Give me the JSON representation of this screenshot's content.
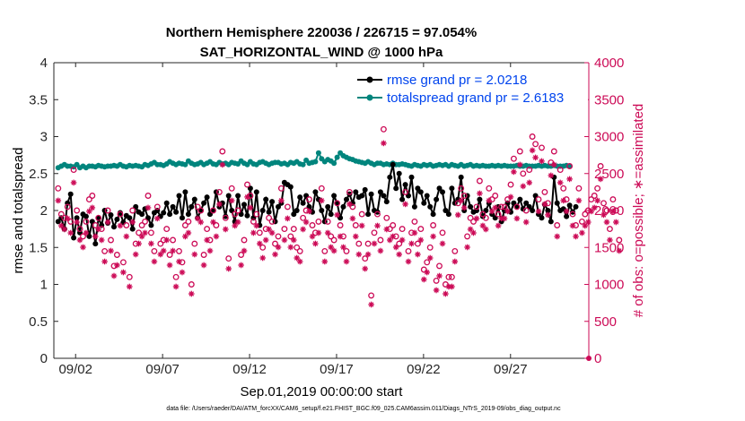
{
  "chart_data": {
    "type": "line",
    "title": "Northern Hemisphere 220036 / 226715 = 97.054%",
    "subtitle": "SAT_HORIZONTAL_WIND @ 1000 hPa",
    "xlabel": "Sep.01,2019 00:00:00 start",
    "ylabel": "rmse and totalspread",
    "ylabel_right": "# of obs: o=possible; ∗=assimilated",
    "xlim": [
      0.75,
      31.5
    ],
    "ylim": [
      0,
      4
    ],
    "ylim_right": [
      0,
      4000
    ],
    "x_ticks": [
      {
        "x": 2,
        "label": "09/02"
      },
      {
        "x": 7,
        "label": "09/07"
      },
      {
        "x": 12,
        "label": "09/12"
      },
      {
        "x": 17,
        "label": "09/17"
      },
      {
        "x": 22,
        "label": "09/22"
      },
      {
        "x": 27,
        "label": "09/27"
      }
    ],
    "y_ticks": [
      "0",
      "0.5",
      "1",
      "1.5",
      "2",
      "2.5",
      "3",
      "3.5",
      "4"
    ],
    "y_ticks_right": [
      "0",
      "500",
      "1000",
      "1500",
      "2000",
      "2500",
      "3000",
      "3500",
      "4000"
    ],
    "legend_position": "top-right",
    "series": [
      {
        "name": "rmse grand pr = 2.0218",
        "axis": "left",
        "color": "#000000",
        "marker": "circle",
        "values": [
          1.85,
          1.9,
          1.75,
          2.1,
          2.22,
          1.63,
          1.9,
          1.7,
          1.95,
          1.92,
          1.65,
          1.85,
          1.55,
          1.9,
          1.8,
          2.0,
          1.83,
          1.94,
          1.78,
          1.88,
          1.97,
          1.84,
          1.93,
          1.9,
          1.75,
          2.05,
          1.98,
          1.95,
          2.02,
          1.9,
          1.8,
          1.97,
          2.0,
          1.92,
          1.97,
          2.1,
          1.95,
          2.05,
          1.98,
          2.2,
          1.9,
          2.25,
          1.95,
          2.05,
          2.15,
          1.9,
          2.0,
          2.1,
          2.18,
          1.95,
          2.0,
          2.25,
          2.05,
          2.1,
          1.92,
          2.2,
          2.0,
          1.85,
          2.2,
          1.95,
          2.08,
          1.93,
          2.3,
          1.9,
          2.25,
          1.8,
          2.0,
          2.15,
          1.98,
          2.12,
          1.85,
          2.05,
          2.1,
          2.38,
          2.35,
          2.32,
          1.95,
          2.0,
          2.18,
          2.1,
          2.2,
          2.05,
          1.98,
          2.25,
          2.15,
          2.0,
          1.85,
          2.05,
          1.95,
          2.2,
          2.1,
          1.9,
          2.05,
          2.15,
          2.22,
          2.1,
          2.25,
          2.18,
          2.2,
          2.28,
          1.95,
          2.22,
          2.0,
          1.98,
          2.25,
          2.2,
          2.12,
          2.45,
          2.62,
          2.3,
          2.5,
          2.15,
          2.35,
          2.2,
          2.45,
          2.05,
          2.3,
          2.25,
          2.1,
          2.2,
          2.05,
          1.95,
          2.15,
          2.3,
          2.25,
          2.0,
          1.95,
          2.3,
          2.1,
          2.15,
          2.45,
          2.0,
          2.2,
          2.05,
          1.98,
          2.0,
          2.15,
          1.92,
          2.0,
          2.1,
          1.95,
          1.9,
          2.05,
          1.85,
          2.0,
          2.1,
          1.98,
          2.1,
          2.05,
          2.15,
          2.02,
          2.1,
          2.05,
          2.0,
          2.2,
          1.95,
          1.9,
          2.08,
          2.0,
          1.85,
          2.45,
          2.1,
          2.0,
          2.02,
          1.92,
          2.07,
          1.98,
          2.05
        ]
      },
      {
        "name": "totalspread grand pr = 2.6183",
        "axis": "left",
        "color": "#00857d",
        "marker": "circle",
        "values": [
          2.58,
          2.6,
          2.62,
          2.6,
          2.6,
          2.59,
          2.62,
          2.58,
          2.6,
          2.58,
          2.6,
          2.6,
          2.59,
          2.61,
          2.6,
          2.59,
          2.6,
          2.6,
          2.61,
          2.6,
          2.62,
          2.6,
          2.59,
          2.61,
          2.6,
          2.61,
          2.6,
          2.59,
          2.62,
          2.61,
          2.63,
          2.65,
          2.62,
          2.62,
          2.61,
          2.63,
          2.66,
          2.64,
          2.62,
          2.64,
          2.63,
          2.62,
          2.67,
          2.64,
          2.62,
          2.63,
          2.65,
          2.62,
          2.64,
          2.66,
          2.63,
          2.62,
          2.65,
          2.63,
          2.64,
          2.62,
          2.65,
          2.64,
          2.63,
          2.67,
          2.64,
          2.62,
          2.66,
          2.63,
          2.62,
          2.65,
          2.66,
          2.64,
          2.62,
          2.64,
          2.65,
          2.65,
          2.63,
          2.64,
          2.62,
          2.65,
          2.64,
          2.66,
          2.63,
          2.62,
          2.68,
          2.64,
          2.65,
          2.66,
          2.78,
          2.7,
          2.66,
          2.69,
          2.67,
          2.64,
          2.72,
          2.78,
          2.74,
          2.72,
          2.7,
          2.69,
          2.67,
          2.66,
          2.65,
          2.64,
          2.66,
          2.64,
          2.62,
          2.64,
          2.64,
          2.62,
          2.63,
          2.62,
          2.64,
          2.62,
          2.62,
          2.63,
          2.62,
          2.61,
          2.6,
          2.62,
          2.61,
          2.6,
          2.62,
          2.61,
          2.62,
          2.6,
          2.61,
          2.62,
          2.61,
          2.62,
          2.6,
          2.62,
          2.61,
          2.6,
          2.62,
          2.6,
          2.61,
          2.62,
          2.6,
          2.61,
          2.6,
          2.61,
          2.6,
          2.6,
          2.61,
          2.6,
          2.61,
          2.6,
          2.61,
          2.6,
          2.6,
          2.6,
          2.61,
          2.6,
          2.6,
          2.61,
          2.6,
          2.6,
          2.6,
          2.61,
          2.6,
          2.61,
          2.6,
          2.6,
          2.61,
          2.6,
          2.6,
          2.6,
          2.61,
          2.6
        ]
      }
    ],
    "obs_possible": [
      2300,
      1950,
      1900,
      2050,
      1850,
      2550,
      2000,
      1750,
      1650,
      1850,
      2150,
      2200,
      1800,
      1900,
      1750,
      1450,
      2000,
      1600,
      1250,
      1400,
      1950,
      1300,
      1800,
      1100,
      2000,
      1550,
      1700,
      1800,
      1850,
      2200,
      1700,
      1450,
      2050,
      1550,
      1600,
      1750,
      1400,
      1600,
      1100,
      1450,
      1300,
      1800,
      1850,
      1000,
      1550,
      2050,
      2000,
      1400,
      1750,
      1600,
      2000,
      1800,
      2250,
      2800,
      1900,
      1350,
      2300,
      1950,
      2000,
      1400,
      1600,
      2350,
      2200,
      1850,
      1950,
      1700,
      1500,
      1750,
      1900,
      1850,
      1550,
      1650,
      2300,
      1750,
      2050,
      1650,
      1750,
      1500,
      1450,
      1900,
      2000,
      2150,
      1800,
      1700,
      1850,
      2300,
      1450,
      1850,
      1650,
      1600,
      2100,
      1800,
      1650,
      1450,
      2250,
      2050,
      1800,
      1550,
      1950,
      1350,
      1550,
      850,
      1700,
      1950,
      1600,
      3100,
      1900,
      1750,
      1800,
      1650,
      1550,
      1750,
      2250,
      1450,
      1700,
      1850,
      1550,
      1750,
      1200,
      1300,
      1500,
      1800,
      1050,
      1250,
      1700,
      1000,
      1100,
      1100,
      1450,
      2100,
      2300,
      2200,
      1650,
      1900,
      1850,
      2050,
      2400,
      1950,
      1900,
      2300,
      2150,
      2200,
      1950,
      2050,
      2050,
      2150,
      2350,
      2700,
      2050,
      2800,
      2500,
      2000,
      2550,
      3000,
      2900,
      2150,
      2850,
      2250,
      2100,
      2650,
      2800,
      1800,
      2550,
      2300,
      2150,
      2600,
      1950,
      1800,
      2300,
      1850,
      1950,
      2000,
      2150,
      2200,
      2300,
      2600,
      2100,
      2000,
      1750,
      2150,
      2000,
      1600
    ]
  },
  "footer": {
    "data_file": "data file: /Users/raeder/DAI/ATM_forcXX/CAM6_setup/f.e21.FHIST_BGC.f09_025.CAM6assim.011/Diags_NTrS_2019-09/obs_diag_output.nc"
  }
}
